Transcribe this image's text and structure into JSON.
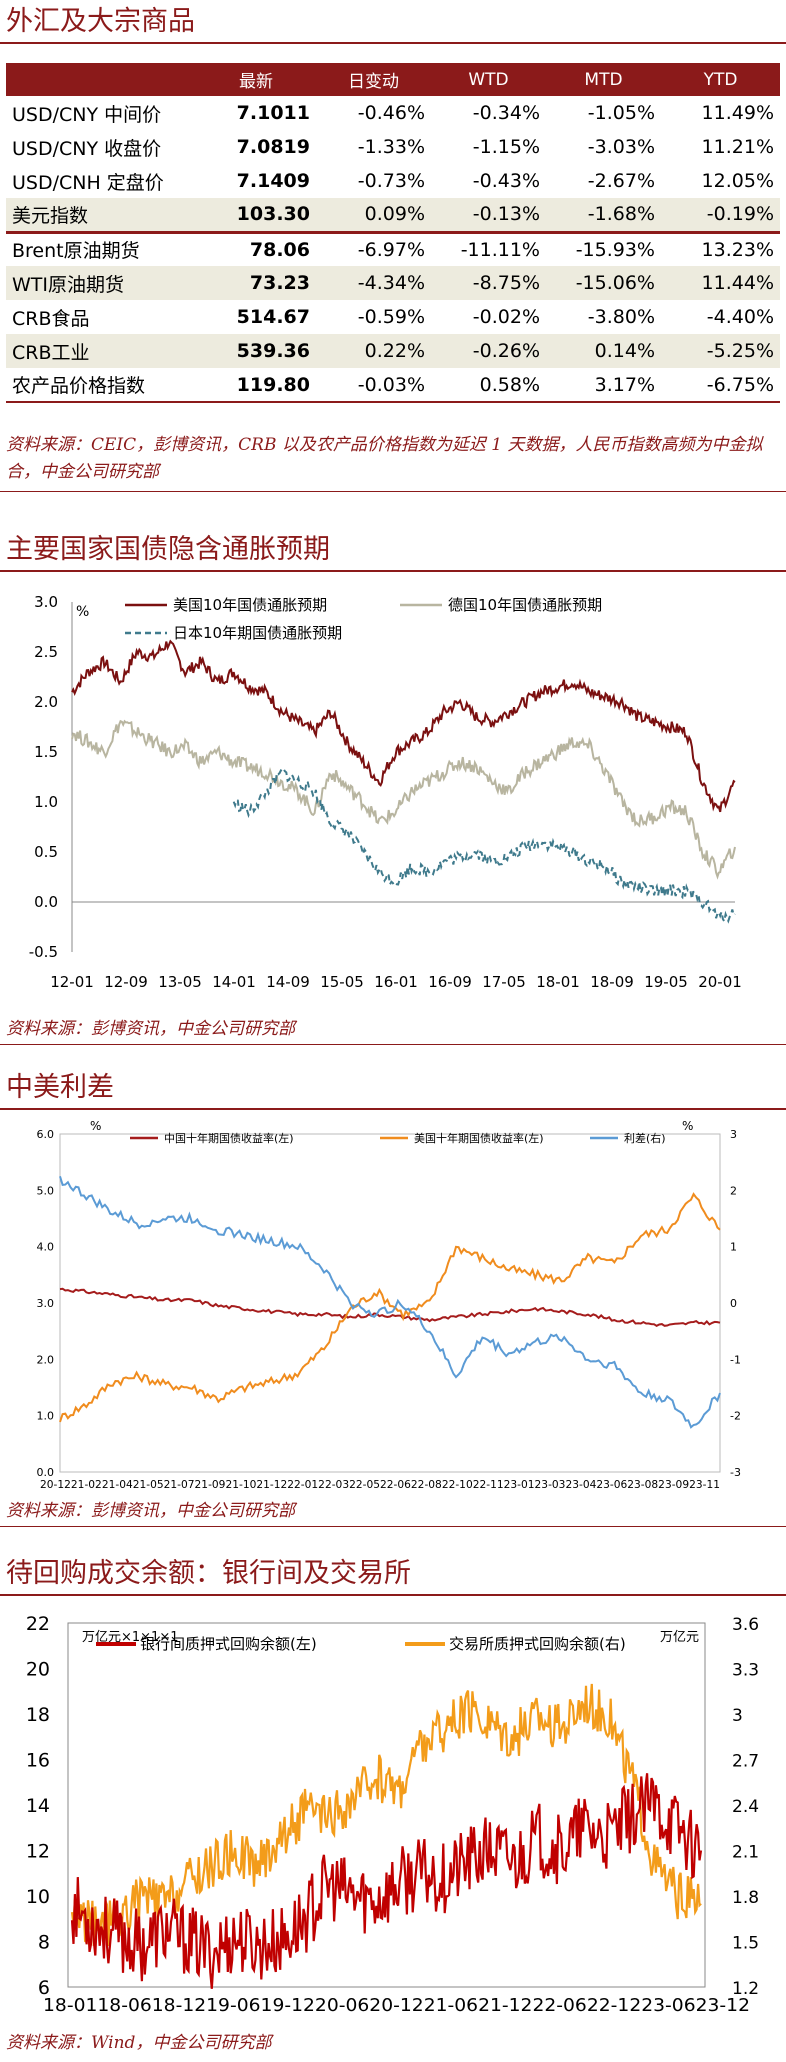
{
  "fx_section": {
    "title": "外汇及大宗商品",
    "headers": [
      "",
      "最新",
      "日变动",
      "WTD",
      "MTD",
      "YTD"
    ],
    "rows": [
      {
        "name": "USD/CNY 中间价",
        "latest": "7.1011",
        "daily": "-0.46%",
        "wtd": "-0.34%",
        "mtd": "-1.05%",
        "ytd": "11.49%"
      },
      {
        "name": "USD/CNY 收盘价",
        "latest": "7.0819",
        "daily": "-1.33%",
        "wtd": "-1.15%",
        "mtd": "-3.03%",
        "ytd": "11.21%"
      },
      {
        "name": "USD/CNH 定盘价",
        "latest": "7.1409",
        "daily": "-0.73%",
        "wtd": "-0.43%",
        "mtd": "-2.67%",
        "ytd": "12.05%"
      },
      {
        "name": "美元指数",
        "latest": "103.30",
        "daily": "0.09%",
        "wtd": "-0.13%",
        "mtd": "-1.68%",
        "ytd": "-0.19%"
      },
      {
        "name": "Brent原油期货",
        "latest": "78.06",
        "daily": "-6.97%",
        "wtd": "-11.11%",
        "mtd": "-15.93%",
        "ytd": "13.23%"
      },
      {
        "name": "WTI原油期货",
        "latest": "73.23",
        "daily": "-4.34%",
        "wtd": "-8.75%",
        "mtd": "-15.06%",
        "ytd": "11.44%"
      },
      {
        "name": "CRB食品",
        "latest": "514.67",
        "daily": "-0.59%",
        "wtd": "-0.02%",
        "mtd": "-3.80%",
        "ytd": "-4.40%"
      },
      {
        "name": "CRB工业",
        "latest": "539.36",
        "daily": "0.22%",
        "wtd": "-0.26%",
        "mtd": "0.14%",
        "ytd": "-5.25%"
      },
      {
        "name": "农产品价格指数",
        "latest": "119.80",
        "daily": "-0.03%",
        "wtd": "0.58%",
        "mtd": "3.17%",
        "ytd": "-6.75%"
      }
    ],
    "source": "资料来源：CEIC，彭博资讯，CRB 以及农产品价格指数为延迟 1 天数据，人民币指数高频为中金拟合，中金公司研究部"
  },
  "inflation_section": {
    "title": "主要国家国债隐含通胀预期",
    "source": "资料来源：彭博资讯，中金公司研究部"
  },
  "spread_section": {
    "title": "中美利差",
    "source": "资料来源：彭博资讯，中金公司研究部"
  },
  "repo_section": {
    "title": "待回购成交余额：银行间及交易所",
    "source": "资料来源：Wind，中金公司研究部"
  },
  "colors": {
    "accent": "#8b1a1a",
    "shade": "#edebde",
    "us": "#7b1010",
    "de": "#b8b5a0",
    "jp": "#3f7a8c",
    "cn_yield": "#a51c1c",
    "us_yield": "#f08c1e",
    "spread": "#5b9bd5",
    "interbank": "#c00000",
    "exchange": "#f39c1a"
  },
  "chart_data": [
    {
      "type": "line",
      "unit_label": "%",
      "ylim": [
        -0.5,
        3.0
      ],
      "yticks": [
        "3.0",
        "2.5",
        "2.0",
        "1.5",
        "1.0",
        "0.5",
        "0.0",
        "-0.5"
      ],
      "xticks": [
        "12-01",
        "12-09",
        "13-05",
        "14-01",
        "14-09",
        "15-05",
        "16-01",
        "16-09",
        "17-05",
        "18-01",
        "18-09",
        "19-05",
        "20-01"
      ],
      "legend": [
        "美国10年国债通胀预期",
        "德国10年国债通胀预期",
        "日本10年期国债通胀预期"
      ],
      "series": [
        {
          "name": "美国10年国债通胀预期",
          "values": [
            2.1,
            2.3,
            2.4,
            2.2,
            2.5,
            2.45,
            2.6,
            2.3,
            2.4,
            2.2,
            2.3,
            2.15,
            2.1,
            1.9,
            1.8,
            1.7,
            1.9,
            1.6,
            1.4,
            1.2,
            1.5,
            1.6,
            1.7,
            1.9,
            2.0,
            1.85,
            1.8,
            1.9,
            2.0,
            2.1,
            2.15,
            2.2,
            2.1,
            2.05,
            2.0,
            1.85,
            1.8,
            1.75,
            1.7,
            1.2,
            0.9,
            1.2
          ]
        },
        {
          "name": "德国10年国债通胀预期",
          "values": [
            1.7,
            1.6,
            1.5,
            1.8,
            1.7,
            1.6,
            1.5,
            1.55,
            1.4,
            1.5,
            1.4,
            1.35,
            1.3,
            1.2,
            1.1,
            0.9,
            1.3,
            1.15,
            1.0,
            0.8,
            0.9,
            1.1,
            1.2,
            1.3,
            1.4,
            1.35,
            1.2,
            1.1,
            1.3,
            1.4,
            1.5,
            1.6,
            1.55,
            1.3,
            1.0,
            0.8,
            0.85,
            0.95,
            0.9,
            0.5,
            0.3,
            0.55
          ]
        },
        {
          "name": "日本10年期国债通胀预期",
          "values": [
            null,
            null,
            null,
            null,
            null,
            null,
            null,
            null,
            null,
            null,
            1.0,
            0.9,
            1.1,
            1.3,
            1.2,
            1.1,
            0.8,
            0.7,
            0.5,
            0.3,
            0.2,
            0.35,
            0.3,
            0.4,
            0.45,
            0.5,
            0.4,
            0.45,
            0.55,
            0.6,
            0.55,
            0.5,
            0.4,
            0.35,
            0.2,
            0.15,
            0.1,
            0.12,
            0.1,
            0.0,
            -0.15,
            -0.12
          ]
        }
      ]
    },
    {
      "type": "line",
      "left_unit": "%",
      "right_unit": "%",
      "ylim_left": [
        0.0,
        6.0
      ],
      "ylim_right": [
        -3,
        3
      ],
      "yticks_left": [
        "6.0",
        "5.0",
        "4.0",
        "3.0",
        "2.0",
        "1.0",
        "0.0"
      ],
      "yticks_right": [
        "3",
        "2",
        "1",
        "0",
        "-1",
        "-2",
        "-3"
      ],
      "xticks": "20-1221-0221-0421-0521-0721-0921-1021-1222-0122-0322-0522-0622-0822-1022-1123-0123-0323-0423-0623-0823-0923-11",
      "legend": [
        "中国十年期国债收益率(左)",
        "美国十年期国债收益率(左)",
        "利差(右)"
      ],
      "series": [
        {
          "name": "中国十年期国债收益率(左)",
          "axis": "left",
          "values": [
            3.25,
            3.2,
            3.15,
            3.1,
            3.05,
            3.05,
            2.95,
            2.9,
            2.85,
            2.8,
            2.8,
            2.75,
            2.8,
            2.75,
            2.7,
            2.75,
            2.8,
            2.85,
            2.9,
            2.85,
            2.8,
            2.7,
            2.65,
            2.6,
            2.65,
            2.65
          ]
        },
        {
          "name": "美国十年期国债收益率(左)",
          "axis": "left",
          "values": [
            0.95,
            1.2,
            1.6,
            1.7,
            1.55,
            1.5,
            1.3,
            1.5,
            1.6,
            1.75,
            2.2,
            2.9,
            3.2,
            2.8,
            3.0,
            4.0,
            3.8,
            3.6,
            3.5,
            3.4,
            3.8,
            3.7,
            4.2,
            4.3,
            4.9,
            4.3
          ]
        },
        {
          "name": "利差(右)",
          "axis": "right",
          "values": [
            2.2,
            1.9,
            1.6,
            1.4,
            1.5,
            1.5,
            1.3,
            1.2,
            1.1,
            1.0,
            0.6,
            0.0,
            -0.2,
            0.0,
            -0.5,
            -1.3,
            -0.6,
            -0.9,
            -0.7,
            -0.6,
            -1.0,
            -1.1,
            -1.6,
            -1.7,
            -2.2,
            -1.6
          ]
        }
      ]
    },
    {
      "type": "line",
      "left_unit": "万亿元×1×1×1",
      "right_unit": "万亿元",
      "ylim_left": [
        6,
        22
      ],
      "ylim_right": [
        1.2,
        3.6
      ],
      "yticks_left": [
        "22",
        "20",
        "18",
        "16",
        "14",
        "12",
        "10",
        "8",
        "6"
      ],
      "yticks_right": [
        "3.6",
        "3.3",
        "3",
        "2.7",
        "2.4",
        "2.1",
        "1.8",
        "1.5",
        "1.2"
      ],
      "xticks": "18-0118-0618-1219-0619-1220-0620-1221-0621-1222-0622-1223-0623-12",
      "legend": [
        "银行间质押式回购余额(左)",
        "交易所质押式回购余额(右)"
      ],
      "series": [
        {
          "name": "银行间质押式回购余额(左)",
          "axis": "left",
          "values": [
            9.5,
            8.8,
            8.2,
            7.8,
            8.5,
            8.0,
            7.5,
            8.2,
            7.8,
            8.0,
            9.0,
            10.5,
            10.0,
            9.8,
            10.5,
            11.0,
            10.8,
            11.5,
            12.0,
            11.5,
            12.5,
            12.0,
            13.0,
            12.5,
            13.5,
            14.0,
            13.0,
            12.0
          ]
        },
        {
          "name": "交易所质押式回购余额(右)",
          "axis": "right",
          "values": [
            1.7,
            1.6,
            1.65,
            1.8,
            1.75,
            1.9,
            2.0,
            2.1,
            2.0,
            2.2,
            2.35,
            2.3,
            2.4,
            2.6,
            2.5,
            2.8,
            2.9,
            3.0,
            2.95,
            2.85,
            3.0,
            2.9,
            3.1,
            3.0,
            2.6,
            2.0,
            1.8,
            1.75
          ]
        }
      ]
    }
  ]
}
